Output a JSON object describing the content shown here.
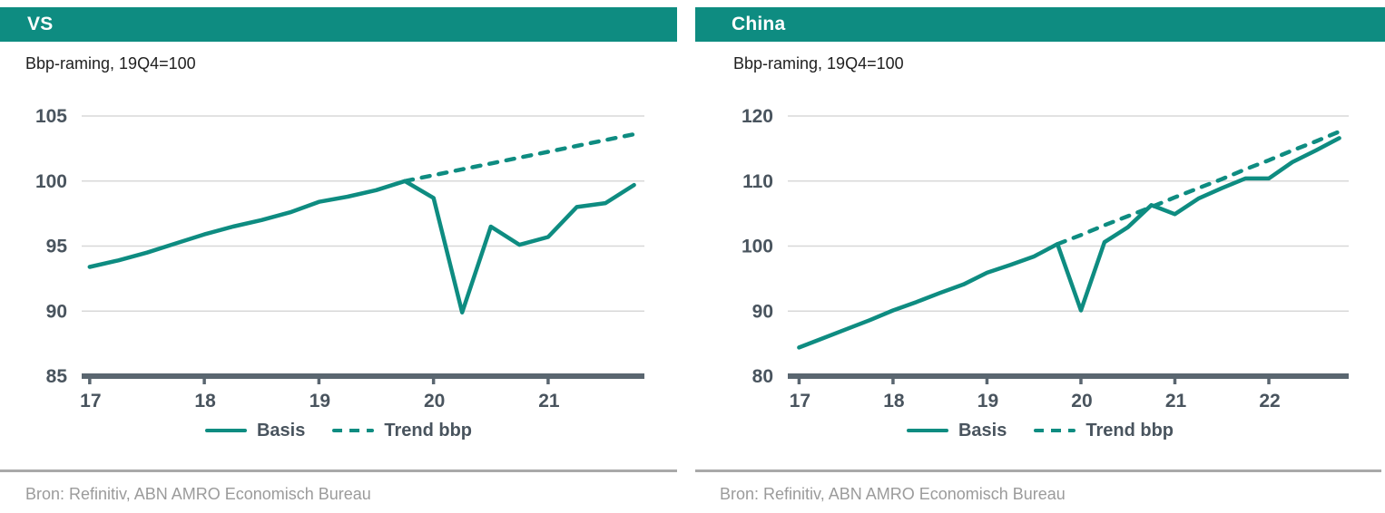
{
  "colors": {
    "accent_teal": "#0E8C81",
    "header_text": "#FFFFFF",
    "text_dark": "#49545E",
    "subtitle_text": "#1F1F1F",
    "axis": "#5A6670",
    "gridline": "#D8D8D8",
    "separator": "#A9A9A9",
    "source_text": "#9B9B9B"
  },
  "panels": [
    {
      "title": "VS",
      "subtitle": "Bbp-raming, 19Q4=100",
      "source": "Bron: Refinitiv, ABN AMRO Economisch Bureau",
      "legend": [
        {
          "label": "Basis",
          "style": "solid"
        },
        {
          "label": "Trend bbp",
          "style": "dashed"
        }
      ],
      "chart_data": {
        "type": "line",
        "title": "VS",
        "subtitle": "Bbp-raming, 19Q4=100",
        "xlabel": "",
        "ylabel": "",
        "xlim": [
          16.93,
          21.84
        ],
        "ylim": [
          85,
          105
        ],
        "x_ticks": [
          17,
          18,
          19,
          20,
          21
        ],
        "y_ticks": [
          85,
          90,
          95,
          100,
          105
        ],
        "grid": "horizontal",
        "legend_position": "bottom-center",
        "series": [
          {
            "name": "Basis",
            "style": "solid",
            "x": [
              17,
              17.25,
              17.5,
              17.75,
              18,
              18.25,
              18.5,
              18.75,
              19,
              19.25,
              19.5,
              19.75,
              20,
              20.25,
              20.5,
              20.75,
              21,
              21.25,
              21.5,
              21.75
            ],
            "values": [
              93.4,
              93.9,
              94.5,
              95.2,
              95.9,
              96.5,
              97.0,
              97.6,
              98.4,
              98.8,
              99.3,
              100.0,
              98.7,
              89.9,
              96.5,
              95.1,
              95.7,
              98.0,
              98.3,
              99.7
            ]
          },
          {
            "name": "Trend bbp",
            "style": "dashed",
            "x": [
              19.75,
              20,
              20.25,
              20.5,
              20.75,
              21,
              21.25,
              21.5,
              21.75
            ],
            "values": [
              100.0,
              100.45,
              100.9,
              101.35,
              101.8,
              102.25,
              102.7,
              103.15,
              103.6
            ]
          }
        ]
      }
    },
    {
      "title": "China",
      "subtitle": "Bbp-raming, 19Q4=100",
      "source": "Bron: Refinitiv, ABN AMRO Economisch Bureau",
      "legend": [
        {
          "label": "Basis",
          "style": "solid"
        },
        {
          "label": "Trend bbp",
          "style": "dashed"
        }
      ],
      "chart_data": {
        "type": "line",
        "title": "China",
        "subtitle": "Bbp-raming, 19Q4=100",
        "xlabel": "",
        "ylabel": "",
        "xlim": [
          16.88,
          22.85
        ],
        "ylim": [
          80,
          120
        ],
        "x_ticks": [
          17,
          18,
          19,
          20,
          21,
          22
        ],
        "y_ticks": [
          80,
          90,
          100,
          110,
          120
        ],
        "grid": "horizontal",
        "legend_position": "bottom-center",
        "series": [
          {
            "name": "Basis",
            "style": "solid",
            "x": [
              17,
              17.25,
              17.5,
              17.75,
              18,
              18.25,
              18.5,
              18.75,
              19,
              19.25,
              19.5,
              19.75,
              20,
              20.25,
              20.5,
              20.75,
              21,
              21.25,
              21.5,
              21.75,
              22,
              22.25,
              22.5,
              22.75
            ],
            "values": [
              84.4,
              85.8,
              87.2,
              88.6,
              90.1,
              91.4,
              92.8,
              94.1,
              95.9,
              97.1,
              98.4,
              100.3,
              90.1,
              100.6,
              102.9,
              106.3,
              104.9,
              107.3,
              108.9,
              110.4,
              110.4,
              112.9,
              114.7,
              116.6
            ]
          },
          {
            "name": "Trend bbp",
            "style": "dashed",
            "x": [
              19.75,
              20,
              20.25,
              20.5,
              20.75,
              21,
              21.25,
              21.5,
              21.75,
              22,
              22.25,
              22.5,
              22.75
            ],
            "values": [
              100.3,
              101.7,
              103.2,
              104.6,
              106.0,
              107.5,
              108.9,
              110.3,
              111.8,
              113.2,
              114.7,
              116.1,
              117.6
            ]
          }
        ]
      }
    }
  ]
}
